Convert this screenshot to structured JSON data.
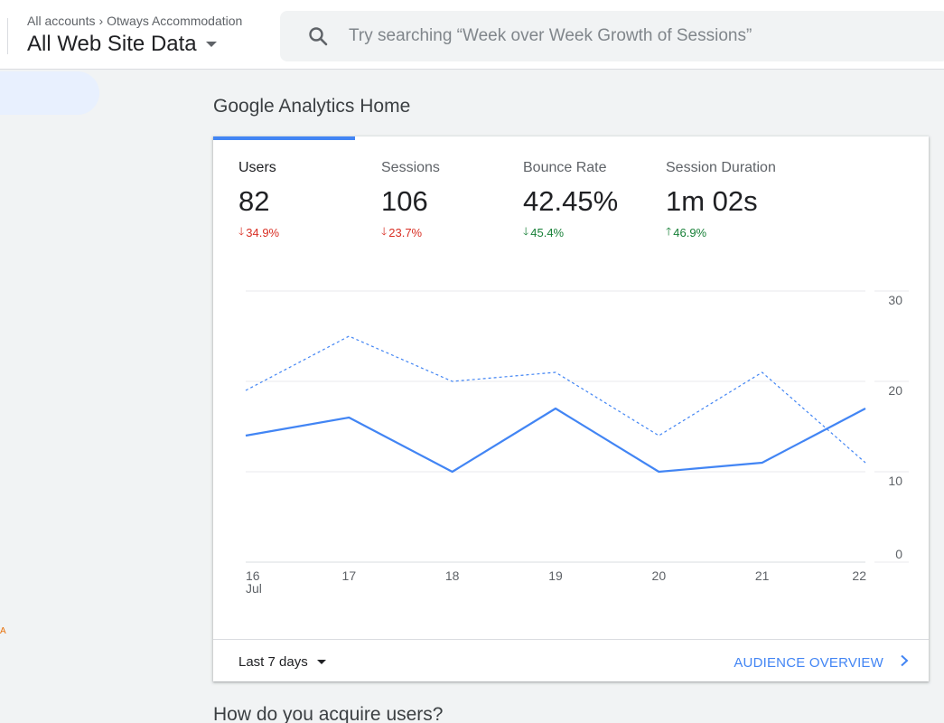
{
  "header": {
    "breadcrumb": {
      "account": "All accounts",
      "property": "Otways Accommodation"
    },
    "view_title": "All Web Site Data",
    "search": {
      "placeholder": "Try searching “Week over Week Growth of Sessions”",
      "icon": "search-icon"
    }
  },
  "nav": {
    "partial_marker": "A"
  },
  "main": {
    "title": "Google Analytics Home",
    "metrics": [
      {
        "label": "Users",
        "value": "82",
        "delta": "34.9%",
        "direction": "down",
        "color": "#d93025",
        "active": true
      },
      {
        "label": "Sessions",
        "value": "106",
        "delta": "23.7%",
        "direction": "down",
        "color": "#d93025",
        "active": false
      },
      {
        "label": "Bounce Rate",
        "value": "42.45%",
        "delta": "45.4%",
        "direction": "down",
        "color": "#188038",
        "active": false
      },
      {
        "label": "Session Duration",
        "value": "1m 02s",
        "delta": "46.9%",
        "direction": "up",
        "color": "#188038",
        "active": false
      }
    ],
    "footer": {
      "date_range": "Last 7 days",
      "link": "AUDIENCE OVERVIEW"
    },
    "next_section_title": "How do you acquire users?"
  },
  "colors": {
    "accent": "#4285f4",
    "negative": "#d93025",
    "positive": "#188038"
  },
  "chart_data": {
    "type": "line",
    "categories": [
      "16",
      "17",
      "18",
      "19",
      "20",
      "21",
      "22"
    ],
    "x_sublabel": "Jul",
    "y_ticks": [
      0,
      10,
      20,
      30
    ],
    "ylim": [
      0,
      30
    ],
    "series": [
      {
        "values": [
          14,
          16,
          10,
          17,
          10,
          11,
          17
        ],
        "style": "solid",
        "color": "#4285f4"
      },
      {
        "values": [
          19,
          25,
          20,
          21,
          14,
          21,
          11
        ],
        "style": "dashed",
        "color": "#4285f4"
      }
    ],
    "grid": true
  }
}
